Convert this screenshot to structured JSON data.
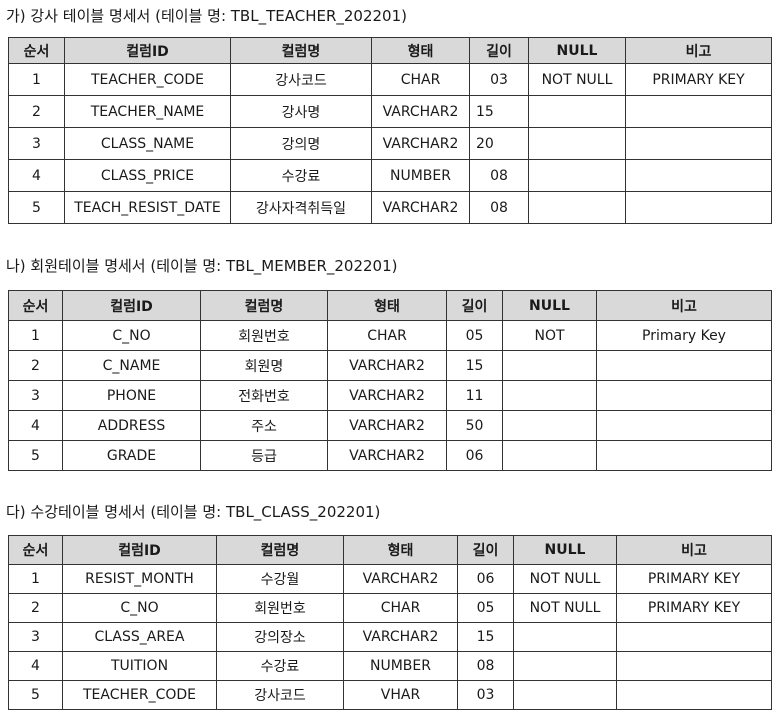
{
  "tables": [
    {
      "caption": "가) 강사 테이블 명세서 (테이블 명: TBL_TEACHER_202201)",
      "headers": [
        "순서",
        "컬럼ID",
        "컬럼명",
        "형태",
        "길이",
        "NULL",
        "비고"
      ],
      "rows": [
        [
          "1",
          "TEACHER_CODE",
          "강사코드",
          "CHAR",
          "03",
          "NOT NULL",
          "PRIMARY KEY"
        ],
        [
          "2",
          "TEACHER_NAME",
          "강사명",
          "VARCHAR2",
          "15",
          "",
          ""
        ],
        [
          "3",
          "CLASS_NAME",
          "강의명",
          "VARCHAR2",
          "20",
          "",
          ""
        ],
        [
          "4",
          "CLASS_PRICE",
          "수강료",
          "NUMBER",
          "08",
          "",
          ""
        ],
        [
          "5",
          "TEACH_RESIST_DATE",
          "강사자격취득일",
          "VARCHAR2",
          "08",
          "",
          ""
        ]
      ]
    },
    {
      "caption": "나) 회원테이블 명세서 (테이블 명: TBL_MEMBER_202201)",
      "headers": [
        "순서",
        "컬럼ID",
        "컬럼명",
        "형태",
        "길이",
        "NULL",
        "비고"
      ],
      "rows": [
        [
          "1",
          "C_NO",
          "회원번호",
          "CHAR",
          "05",
          "NOT",
          "Primary Key"
        ],
        [
          "2",
          "C_NAME",
          "회원명",
          "VARCHAR2",
          "15",
          "",
          ""
        ],
        [
          "3",
          "PHONE",
          "전화번호",
          "VARCHAR2",
          "11",
          "",
          ""
        ],
        [
          "4",
          "ADDRESS",
          "주소",
          "VARCHAR2",
          "50",
          "",
          ""
        ],
        [
          "5",
          "GRADE",
          "등급",
          "VARCHAR2",
          "06",
          "",
          ""
        ]
      ]
    },
    {
      "caption": "다) 수강테이블 명세서 (테이블 명: TBL_CLASS_202201)",
      "headers": [
        "순서",
        "컬럼ID",
        "컬럼명",
        "형태",
        "길이",
        "NULL",
        "비고"
      ],
      "rows": [
        [
          "1",
          "RESIST_MONTH",
          "수강월",
          "VARCHAR2",
          "06",
          "NOT NULL",
          "PRIMARY KEY"
        ],
        [
          "2",
          "C_NO",
          "회원번호",
          "CHAR",
          "05",
          "NOT NULL",
          "PRIMARY KEY"
        ],
        [
          "3",
          "CLASS_AREA",
          "강의장소",
          "VARCHAR2",
          "15",
          "",
          ""
        ],
        [
          "4",
          "TUITION",
          "수강료",
          "NUMBER",
          "08",
          "",
          ""
        ],
        [
          "5",
          "TEACHER_CODE",
          "강사코드",
          "VHAR",
          "03",
          "",
          ""
        ]
      ]
    }
  ]
}
